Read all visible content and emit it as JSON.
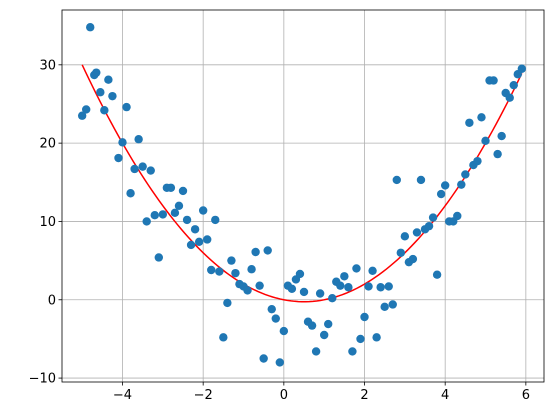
{
  "chart_data": {
    "type": "scatter",
    "xlim": [
      -5.5,
      6.45
    ],
    "ylim": [
      -10.5,
      37
    ],
    "grid": true,
    "x_ticks": [
      -4,
      -2,
      0,
      2,
      4,
      6
    ],
    "y_ticks": [
      -10,
      0,
      10,
      20,
      30
    ],
    "x_tick_labels": [
      "−4",
      "−2",
      "0",
      "2",
      "4",
      "6"
    ],
    "y_tick_labels": [
      "−10",
      "0",
      "10",
      "20",
      "30"
    ],
    "points_color": "#1f77b4",
    "line_color": "#ff0000",
    "fit_curve": {
      "type": "quadratic",
      "coefficients": [
        1.0,
        -1.0,
        0.0
      ],
      "x_range": [
        -5,
        5.9
      ]
    },
    "series": [
      {
        "type": "scatter",
        "x": [
          -5.0,
          -4.9,
          -4.8,
          -4.7,
          -4.65,
          -4.55,
          -4.45,
          -4.35,
          -4.25,
          -4.1,
          -4.0,
          -3.9,
          -3.8,
          -3.7,
          -3.6,
          -3.5,
          -3.4,
          -3.3,
          -3.2,
          -3.1,
          -3.0,
          -2.9,
          -2.8,
          -2.7,
          -2.6,
          -2.5,
          -2.4,
          -2.3,
          -2.2,
          -2.1,
          -2.0,
          -1.9,
          -1.8,
          -1.7,
          -1.6,
          -1.5,
          -1.4,
          -1.3,
          -1.2,
          -1.1,
          -1.0,
          -0.9,
          -0.8,
          -0.7,
          -0.6,
          -0.5,
          -0.4,
          -0.3,
          -0.2,
          -0.1,
          0.0,
          0.1,
          0.2,
          0.3,
          0.4,
          0.5,
          0.6,
          0.7,
          0.8,
          0.9,
          1.0,
          1.1,
          1.2,
          1.3,
          1.4,
          1.5,
          1.6,
          1.7,
          1.8,
          1.9,
          2.0,
          2.1,
          2.2,
          2.3,
          2.4,
          2.5,
          2.6,
          2.7,
          2.8,
          2.9,
          3.0,
          3.1,
          3.2,
          3.3,
          3.4,
          3.5,
          3.6,
          3.7,
          3.8,
          3.9,
          4.0,
          4.1,
          4.2,
          4.3,
          4.4,
          4.5,
          4.6,
          4.7,
          4.8,
          4.9,
          5.0,
          5.1,
          5.2,
          5.3,
          5.4,
          5.5,
          5.6,
          5.7,
          5.8,
          5.9
        ],
        "y": [
          23.5,
          24.3,
          34.8,
          28.7,
          29.0,
          26.5,
          24.2,
          28.1,
          26.0,
          18.1,
          20.1,
          24.6,
          13.6,
          16.7,
          20.5,
          17.0,
          10.0,
          16.5,
          10.8,
          5.4,
          10.9,
          14.3,
          14.3,
          11.1,
          12.0,
          13.9,
          10.2,
          7.0,
          9.0,
          7.4,
          11.4,
          7.7,
          3.8,
          10.2,
          3.6,
          -4.8,
          -0.4,
          5.0,
          3.4,
          2.0,
          1.7,
          1.2,
          3.9,
          6.1,
          1.8,
          -7.5,
          6.3,
          -1.2,
          -2.4,
          -8.0,
          -4.0,
          1.8,
          1.4,
          2.6,
          3.3,
          1.0,
          -2.8,
          -3.3,
          -6.6,
          0.8,
          -4.5,
          -3.1,
          0.2,
          2.3,
          1.8,
          3.0,
          1.6,
          -6.6,
          4.0,
          -5.0,
          -2.2,
          1.7,
          3.7,
          -4.8,
          1.6,
          -0.9,
          1.7,
          -0.6,
          15.3,
          6.0,
          8.1,
          4.8,
          5.2,
          8.6,
          15.3,
          9.0,
          9.4,
          10.5,
          3.2,
          13.5,
          14.6,
          10.0,
          10.0,
          10.7,
          14.7,
          16.0,
          22.6,
          17.2,
          17.7,
          23.3,
          20.3,
          28.0,
          28.0,
          18.6,
          20.9,
          26.4,
          25.8,
          27.4,
          28.8,
          29.5
        ]
      }
    ]
  }
}
